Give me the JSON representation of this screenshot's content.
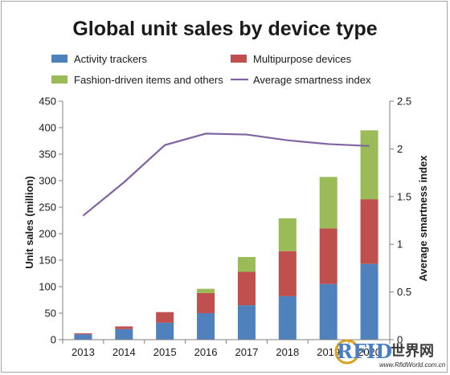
{
  "chart_data": {
    "type": "bar",
    "stacked": true,
    "title": "Global unit sales by device type",
    "xlabel": "",
    "ylabel": "Unit sales (million)",
    "y2label": "Average smartness index",
    "categories": [
      "2013",
      "2014",
      "2015",
      "2016",
      "2017",
      "2018",
      "2019",
      "2020"
    ],
    "ylim": [
      0,
      450
    ],
    "yticks": [
      0,
      50,
      100,
      150,
      200,
      250,
      300,
      350,
      400,
      450
    ],
    "y2lim": [
      0,
      2.5
    ],
    "y2ticks": [
      "0",
      "0.5",
      "1",
      "1.5",
      "2",
      "2.5"
    ],
    "grid": false,
    "legend_position": "top",
    "series": [
      {
        "name": "Activity trackers",
        "type": "bar",
        "axis": "left",
        "color": "#4f81bd",
        "values": [
          10,
          20,
          32,
          50,
          65,
          82,
          105,
          143
        ]
      },
      {
        "name": "Multipurpose devices",
        "type": "bar",
        "axis": "left",
        "color": "#c0504d",
        "values": [
          2,
          5,
          20,
          38,
          63,
          85,
          105,
          122
        ]
      },
      {
        "name": "Fashion-driven items and others",
        "type": "bar",
        "axis": "left",
        "color": "#9bbb59",
        "values": [
          0,
          0,
          0,
          8,
          28,
          62,
          97,
          130
        ]
      },
      {
        "name": "Average smartness index",
        "type": "line",
        "axis": "right",
        "color": "#8064a2",
        "values": [
          1.3,
          1.65,
          2.04,
          2.16,
          2.15,
          2.09,
          2.05,
          2.03
        ]
      }
    ]
  },
  "watermark": {
    "letters": "RFID",
    "chinese": "世界网",
    "url": "www.RfidWorld.com.cn"
  }
}
